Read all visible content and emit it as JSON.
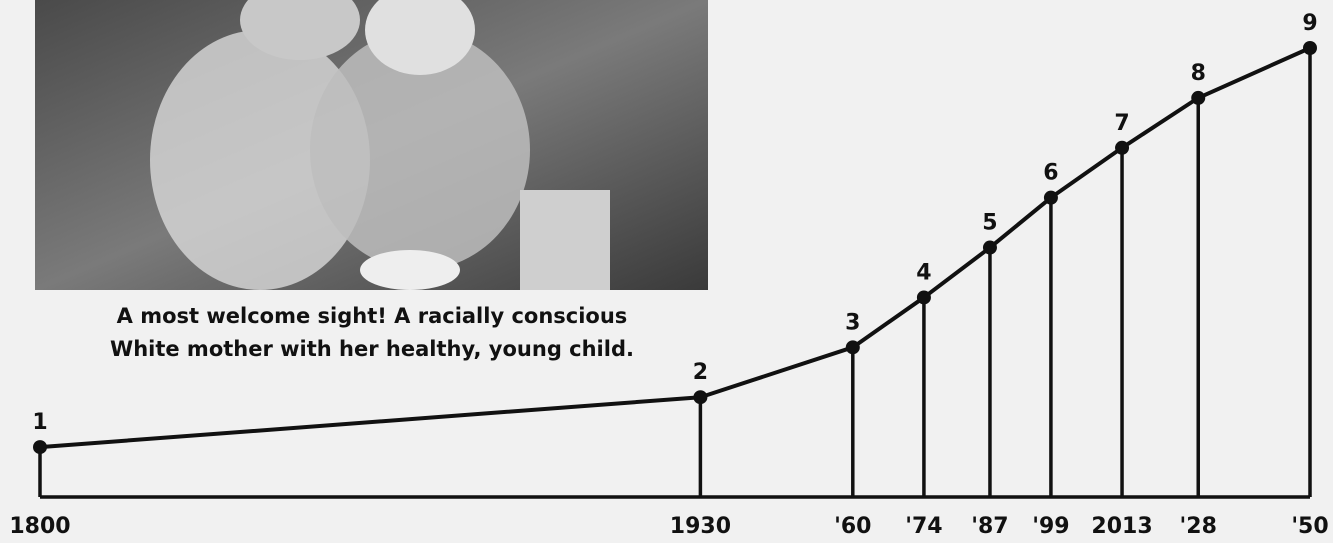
{
  "photo_caption": [
    "A most welcome sight! A racially conscious",
    "White mother with her healthy, young child."
  ],
  "chart_data": {
    "type": "line",
    "x": [
      1800,
      1930,
      1960,
      1974,
      1987,
      1999,
      2013,
      2028,
      2050
    ],
    "values": [
      1,
      2,
      3,
      4,
      5,
      6,
      7,
      8,
      9
    ],
    "color": "#111111",
    "xlim": [
      1800,
      2050
    ],
    "ylim": [
      0,
      9
    ],
    "xticks": [
      1800,
      1930,
      {
        "value": 1960,
        "label": "'60"
      },
      {
        "value": 1974,
        "label": "'74"
      },
      {
        "value": 1987,
        "label": "'87"
      },
      {
        "value": 1999,
        "label": "'99"
      },
      2013,
      {
        "value": 2028,
        "label": "'28"
      },
      {
        "value": 2050,
        "label": "'50"
      }
    ],
    "grid": false
  }
}
